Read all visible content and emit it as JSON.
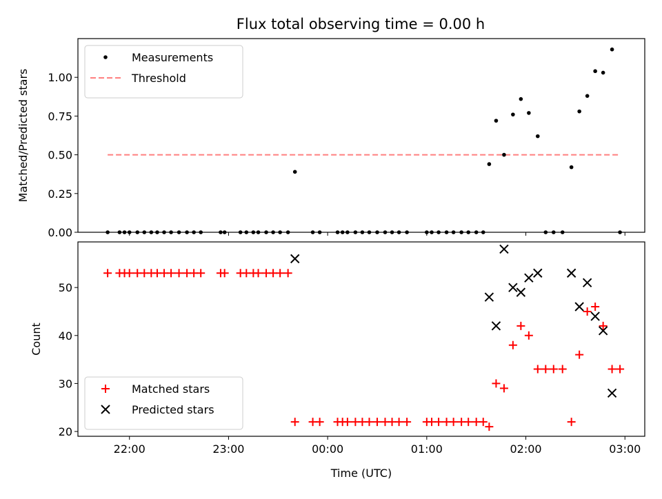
{
  "figure": {
    "title": "Flux total observing time = 0.00 h"
  },
  "chart_data": [
    {
      "type": "scatter",
      "ylabel": "Matched/Predicted stars",
      "xlim_hours": [
        21.48,
        27.2
      ],
      "ylim": [
        0,
        1.25
      ],
      "yticks": [
        0,
        0.25,
        0.5,
        0.75,
        1.0
      ],
      "ytick_labels": [
        "0.00",
        "0.25",
        "0.50",
        "0.75",
        "1.00"
      ],
      "legend": {
        "position": "upper-left"
      },
      "threshold": {
        "name": "Threshold",
        "value": 0.5,
        "x_range_hours": [
          21.78,
          26.95
        ],
        "color": "#ff7f7f"
      },
      "series": [
        {
          "name": "Measurements",
          "color": "#000000",
          "x_hours": [
            21.78,
            21.9,
            21.95,
            22.0,
            22.08,
            22.15,
            22.22,
            22.28,
            22.35,
            22.42,
            22.5,
            22.58,
            22.65,
            22.72,
            22.92,
            22.96,
            23.12,
            23.18,
            23.25,
            23.3,
            23.38,
            23.45,
            23.52,
            23.6,
            23.67,
            23.85,
            23.92,
            24.1,
            24.15,
            24.2,
            24.28,
            24.35,
            24.42,
            24.5,
            24.58,
            24.65,
            24.72,
            24.8,
            25.0,
            25.05,
            25.12,
            25.2,
            25.27,
            25.35,
            25.42,
            25.5,
            25.57,
            25.63,
            25.7,
            25.78,
            25.87,
            25.95,
            26.03,
            26.12,
            26.2,
            26.28,
            26.37,
            26.46,
            26.54,
            26.62,
            26.7,
            26.78,
            26.87,
            26.95
          ],
          "y": [
            0,
            0,
            0,
            0,
            0,
            0,
            0,
            0,
            0,
            0,
            0,
            0,
            0,
            0,
            0,
            0,
            0,
            0,
            0,
            0,
            0,
            0,
            0,
            0,
            0.39,
            0,
            0,
            0,
            0,
            0,
            0,
            0,
            0,
            0,
            0,
            0,
            0,
            0,
            0,
            0,
            0,
            0,
            0,
            0,
            0,
            0,
            0,
            0.44,
            0.72,
            0.5,
            0.76,
            0.86,
            0.77,
            0.62,
            0,
            0,
            0,
            0.42,
            0.78,
            0.88,
            1.04,
            1.03,
            1.18,
            0
          ]
        }
      ]
    },
    {
      "type": "scatter",
      "ylabel": "Count",
      "xlabel": "Time (UTC)",
      "xlim_hours": [
        21.48,
        27.2
      ],
      "ylim": [
        19,
        59.5
      ],
      "yticks": [
        20,
        30,
        40,
        50
      ],
      "xticks_hours": [
        22,
        23,
        24,
        25,
        26,
        27
      ],
      "xtick_labels": [
        "22:00",
        "23:00",
        "00:00",
        "01:00",
        "02:00",
        "03:00"
      ],
      "legend": {
        "position": "lower-left"
      },
      "series": [
        {
          "name": "Matched stars",
          "marker": "plus",
          "color": "#ff0000",
          "x_hours": [
            21.78,
            21.9,
            21.95,
            22.0,
            22.08,
            22.15,
            22.22,
            22.28,
            22.35,
            22.42,
            22.5,
            22.58,
            22.65,
            22.72,
            22.92,
            22.96,
            23.12,
            23.18,
            23.25,
            23.3,
            23.38,
            23.45,
            23.52,
            23.6,
            23.67,
            23.85,
            23.92,
            24.1,
            24.15,
            24.2,
            24.28,
            24.35,
            24.42,
            24.5,
            24.58,
            24.65,
            24.72,
            24.8,
            25.0,
            25.05,
            25.12,
            25.2,
            25.27,
            25.35,
            25.42,
            25.5,
            25.57,
            25.63,
            25.7,
            25.78,
            25.87,
            25.95,
            26.03,
            26.12,
            26.2,
            26.28,
            26.37,
            26.46,
            26.54,
            26.62,
            26.7,
            26.78,
            26.87,
            26.95
          ],
          "y": [
            53,
            53,
            53,
            53,
            53,
            53,
            53,
            53,
            53,
            53,
            53,
            53,
            53,
            53,
            53,
            53,
            53,
            53,
            53,
            53,
            53,
            53,
            53,
            53,
            22,
            22,
            22,
            22,
            22,
            22,
            22,
            22,
            22,
            22,
            22,
            22,
            22,
            22,
            22,
            22,
            22,
            22,
            22,
            22,
            22,
            22,
            22,
            21,
            30,
            29,
            38,
            42,
            40,
            33,
            33,
            33,
            33,
            22,
            36,
            45,
            46,
            42,
            33,
            33
          ]
        },
        {
          "name": "Predicted stars",
          "marker": "x",
          "color": "#000000",
          "x_hours": [
            23.67,
            25.63,
            25.7,
            25.78,
            25.87,
            25.95,
            26.03,
            26.12,
            26.46,
            26.54,
            26.62,
            26.7,
            26.78,
            26.87
          ],
          "y": [
            56,
            48,
            42,
            58,
            50,
            49,
            52,
            53,
            53,
            46,
            51,
            44,
            41,
            28
          ]
        }
      ]
    }
  ]
}
